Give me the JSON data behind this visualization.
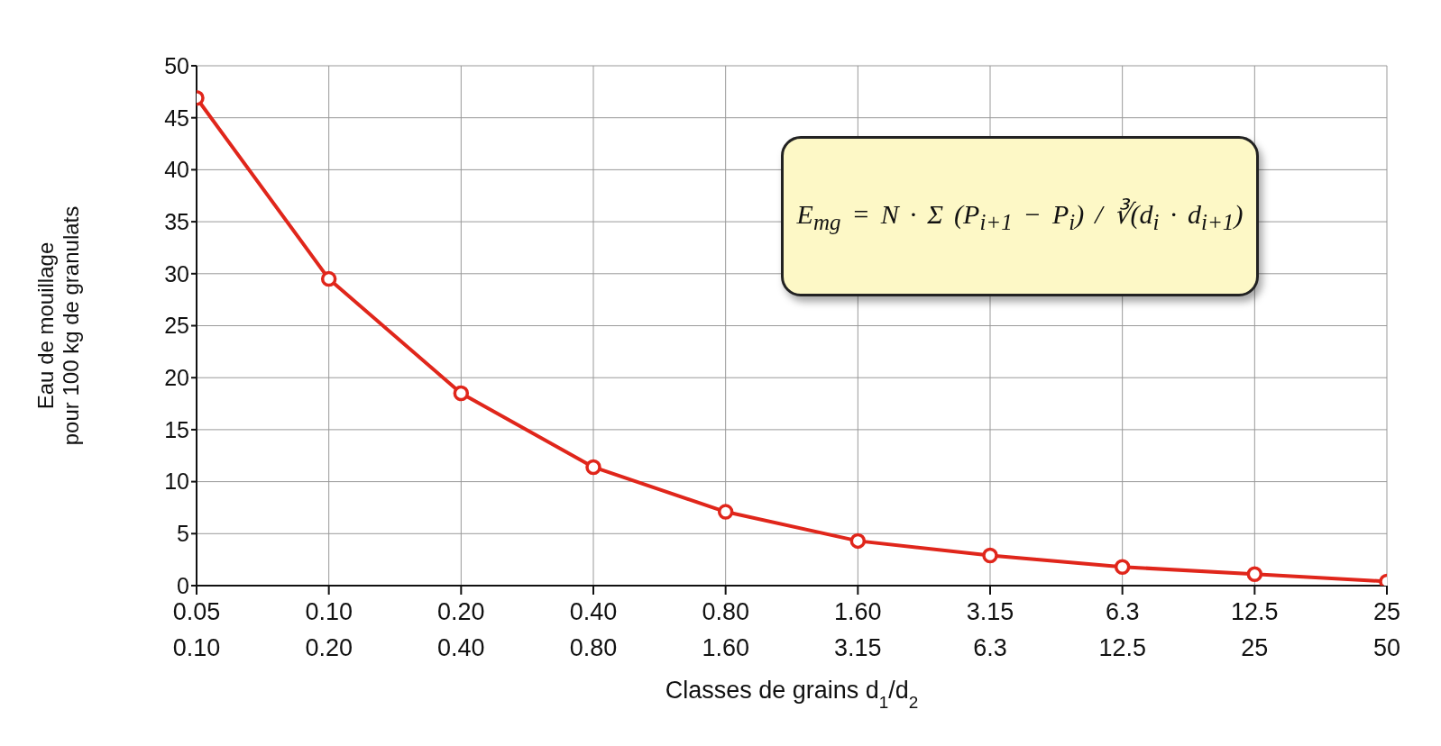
{
  "chart_data": {
    "type": "line",
    "xlabel": "Classes de grains d$_{1}$/d$_{2}$",
    "ylabel": "Eau de mouillage\npour 100 kg de granulats",
    "categories": [
      "0.05\n0.10",
      "0.10\n0.20",
      "0.20\n0.40",
      "0.40\n0.80",
      "0.80\n1.60",
      "1.60\n3.15",
      "3.15\n6.3",
      "6.3\n12.5",
      "12.5\n25",
      "25\n50"
    ],
    "series": [
      {
        "color": "#e0261b",
        "values": [
          46.9,
          29.5,
          18.5,
          11.4,
          7.1,
          4.3,
          2.9,
          1.8,
          1.1,
          0.4
        ]
      }
    ],
    "ylim": [
      0,
      50
    ],
    "yticks": [
      0,
      5,
      10,
      15,
      20,
      25,
      30,
      35,
      40,
      45,
      50
    ],
    "grid": true,
    "marker": "circle",
    "line_style": "solid",
    "legend": false,
    "annotations": [
      "E$_{mg}$ = N · Σ (P$_{i+1}$ − P$_{i}$) / ∛(d$_{i}$ · d$_{i+1}$)"
    ]
  }
}
